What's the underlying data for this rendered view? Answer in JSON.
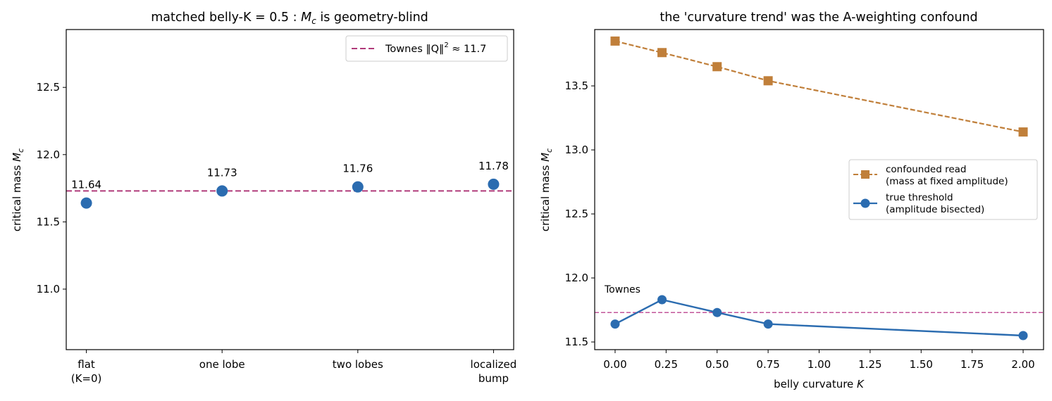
{
  "colors": {
    "point_blue": "#2b6cb0",
    "townes": "#b03a7a",
    "confounded": "#c07f3a",
    "true_line": "#2b6cb0",
    "townes_light": "#c2549a"
  },
  "chart_data": [
    {
      "type": "scatter",
      "title": "matched belly-K = 0.5 : M_c is geometry-blind",
      "title_parts": {
        "prefix": "matched belly-K = 0.5 : ",
        "symbol": "M",
        "subscript": "c",
        "suffix": " is geometry-blind"
      },
      "ylabel": "critical mass  M_c",
      "ylabel_parts": {
        "prefix": "critical mass  ",
        "symbol": "M",
        "subscript": "c"
      },
      "ylim": [
        10.55,
        12.93
      ],
      "yticks": [
        11.0,
        11.5,
        12.0,
        12.5
      ],
      "ytick_labels": [
        "11.0",
        "11.5",
        "12.0",
        "12.5"
      ],
      "categories": [
        {
          "line1": "flat",
          "line2": "(K=0)"
        },
        {
          "line1": "one lobe",
          "line2": ""
        },
        {
          "line1": "two lobes",
          "line2": ""
        },
        {
          "line1": "localized",
          "line2": "bump"
        }
      ],
      "values": [
        11.64,
        11.73,
        11.76,
        11.78
      ],
      "value_labels": [
        "11.64",
        "11.73",
        "11.76",
        "11.78"
      ],
      "reference": {
        "value": 11.73,
        "style": "dashed"
      },
      "legend": {
        "placement": "top-right",
        "label": "Townes ‖Q‖² ≈ 11.7",
        "label_main": "Townes ‖Q‖",
        "label_sup": "2",
        "label_tail": " ≈ 11.7"
      },
      "grid": false
    },
    {
      "type": "line",
      "title": "the 'curvature trend' was the A-weighting confound",
      "xlabel": "belly curvature  K",
      "xlabel_parts": {
        "prefix": "belly curvature  ",
        "symbol": "K"
      },
      "ylabel": "critical mass  M_c",
      "ylabel_parts": {
        "prefix": "critical mass  ",
        "symbol": "M",
        "subscript": "c"
      },
      "xlim": [
        -0.1,
        2.1
      ],
      "ylim": [
        11.44,
        13.94
      ],
      "xticks": [
        0.0,
        0.25,
        0.5,
        0.75,
        1.0,
        1.25,
        1.5,
        1.75,
        2.0
      ],
      "xtick_labels": [
        "0.00",
        "0.25",
        "0.50",
        "0.75",
        "1.00",
        "1.25",
        "1.50",
        "1.75",
        "2.00"
      ],
      "yticks": [
        11.5,
        12.0,
        12.5,
        13.0,
        13.5
      ],
      "ytick_labels": [
        "11.5",
        "12.0",
        "12.5",
        "13.0",
        "13.5"
      ],
      "series": [
        {
          "name": "confounded read (mass at fixed amplitude)",
          "name_line1": "confounded read",
          "name_line2": "(mass at fixed amplitude)",
          "marker": "square",
          "style": "dashed",
          "x": [
            0.0,
            0.23,
            0.5,
            0.75,
            2.0
          ],
          "y": [
            13.85,
            13.76,
            13.65,
            13.54,
            13.14
          ]
        },
        {
          "name": "true threshold (amplitude bisected)",
          "name_line1": "true threshold",
          "name_line2": "(amplitude bisected)",
          "marker": "circle",
          "style": "solid",
          "x": [
            0.0,
            0.23,
            0.5,
            0.75,
            2.0
          ],
          "y": [
            11.64,
            11.83,
            11.73,
            11.64,
            11.55
          ]
        }
      ],
      "reference": {
        "value": 11.73,
        "style": "dashed",
        "label": "Townes"
      },
      "legend": {
        "placement": "center-right"
      },
      "grid": false
    }
  ]
}
